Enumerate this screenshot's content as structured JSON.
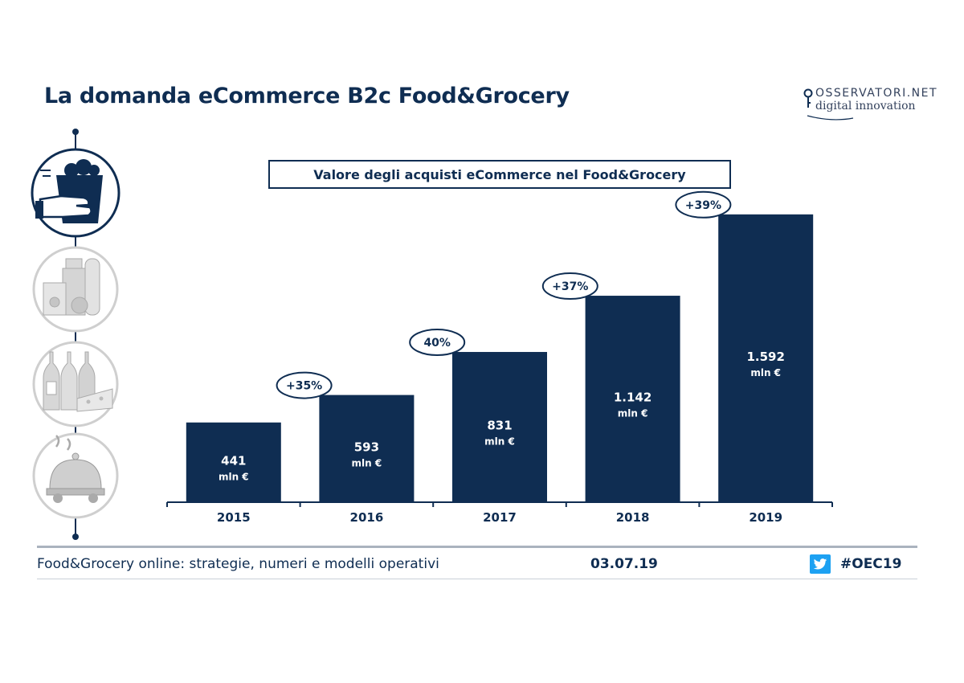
{
  "header": {
    "title": "La domanda eCommerce B2c Food&Grocery",
    "logo_top": "OSSERVATORI.NET",
    "logo_bottom": "digital innovation"
  },
  "sidebar": {
    "icons": [
      "grocery-bag-hand-icon",
      "packaged-food-icon",
      "wine-cheese-icon",
      "food-delivery-icon"
    ]
  },
  "chart_data": {
    "type": "bar",
    "title": "Valore degli acquisti eCommerce nel Food&Grocery",
    "categories": [
      "2015",
      "2016",
      "2017",
      "2018",
      "2019"
    ],
    "values": [
      441,
      593,
      831,
      1142,
      1592
    ],
    "value_labels": [
      "441",
      "593",
      "831",
      "1.142",
      "1.592"
    ],
    "unit_label": "mln €",
    "growth_labels": [
      "+35%",
      "40%",
      "+37%",
      "+39%"
    ],
    "bar_color": "#0f2d52"
  },
  "footer": {
    "text": "Food&Grocery online: strategie, numeri e modelli operativi",
    "date": "03.07.19",
    "hashtag": "#OEC19",
    "twitter_color": "#1da1f2"
  }
}
